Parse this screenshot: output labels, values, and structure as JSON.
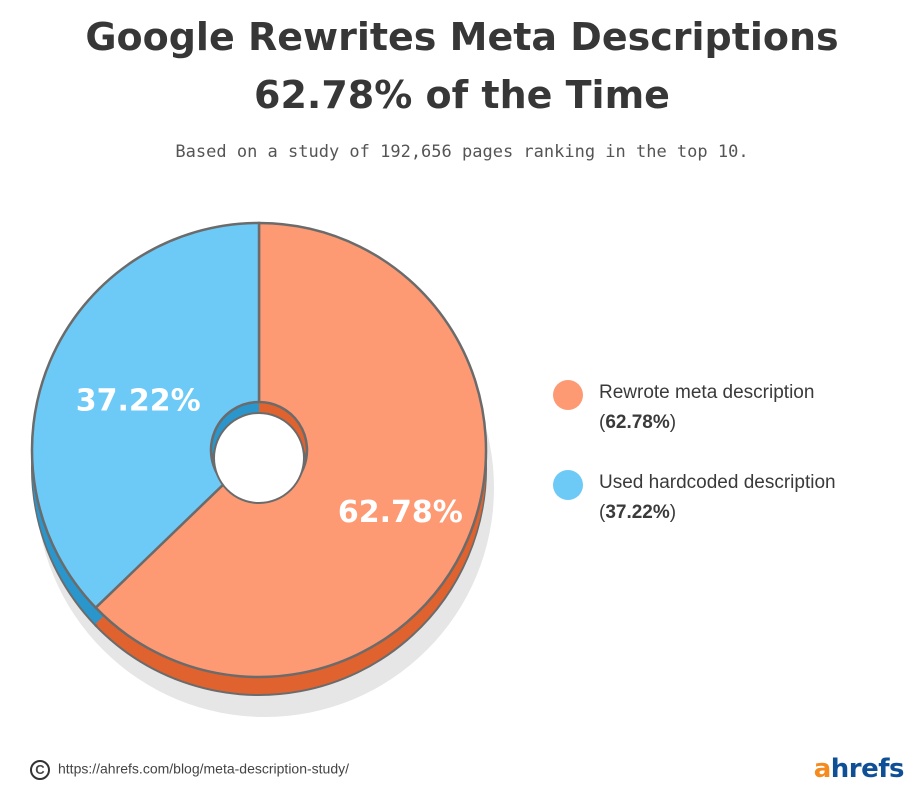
{
  "header": {
    "title_line1": "Google Rewrites Meta Descriptions",
    "title_line2": "62.78% of the Time",
    "subtitle": "Based on a study of 192,656 pages ranking in the top 10."
  },
  "chart_data": {
    "type": "pie",
    "title": "Google Rewrites Meta Descriptions 62.78% of the Time",
    "subtitle": "Based on a study of 192,656 pages ranking in the top 10.",
    "slices": [
      {
        "label": "Rewrote meta description",
        "value": 62.78,
        "display": "62.78%",
        "color": "#fd9a74",
        "side_color": "#e0622f"
      },
      {
        "label": "Used hardcoded description",
        "value": 37.22,
        "display": "37.22%",
        "color": "#6dcaf7",
        "side_color": "#2a96cc"
      }
    ],
    "legend_position": "right"
  },
  "legend": [
    {
      "label": "Rewrote meta description",
      "value_prefix": "(",
      "value": "62.78%",
      "value_suffix": ")",
      "color": "#fd9a74"
    },
    {
      "label": "Used hardcoded description",
      "value_prefix": "(",
      "value": "37.22%",
      "value_suffix": ")",
      "color": "#6dcaf7"
    }
  ],
  "footer": {
    "copyright_symbol": "C",
    "url": "https://ahrefs.com/blog/meta-description-study/",
    "logo_a": "a",
    "logo_rest": "hrefs"
  },
  "colors": {
    "title": "#373737",
    "outline": "#6b6b6b",
    "shadow": "#e6e6e6",
    "logo_orange": "#f58b1f",
    "logo_blue": "#0f4f96"
  }
}
